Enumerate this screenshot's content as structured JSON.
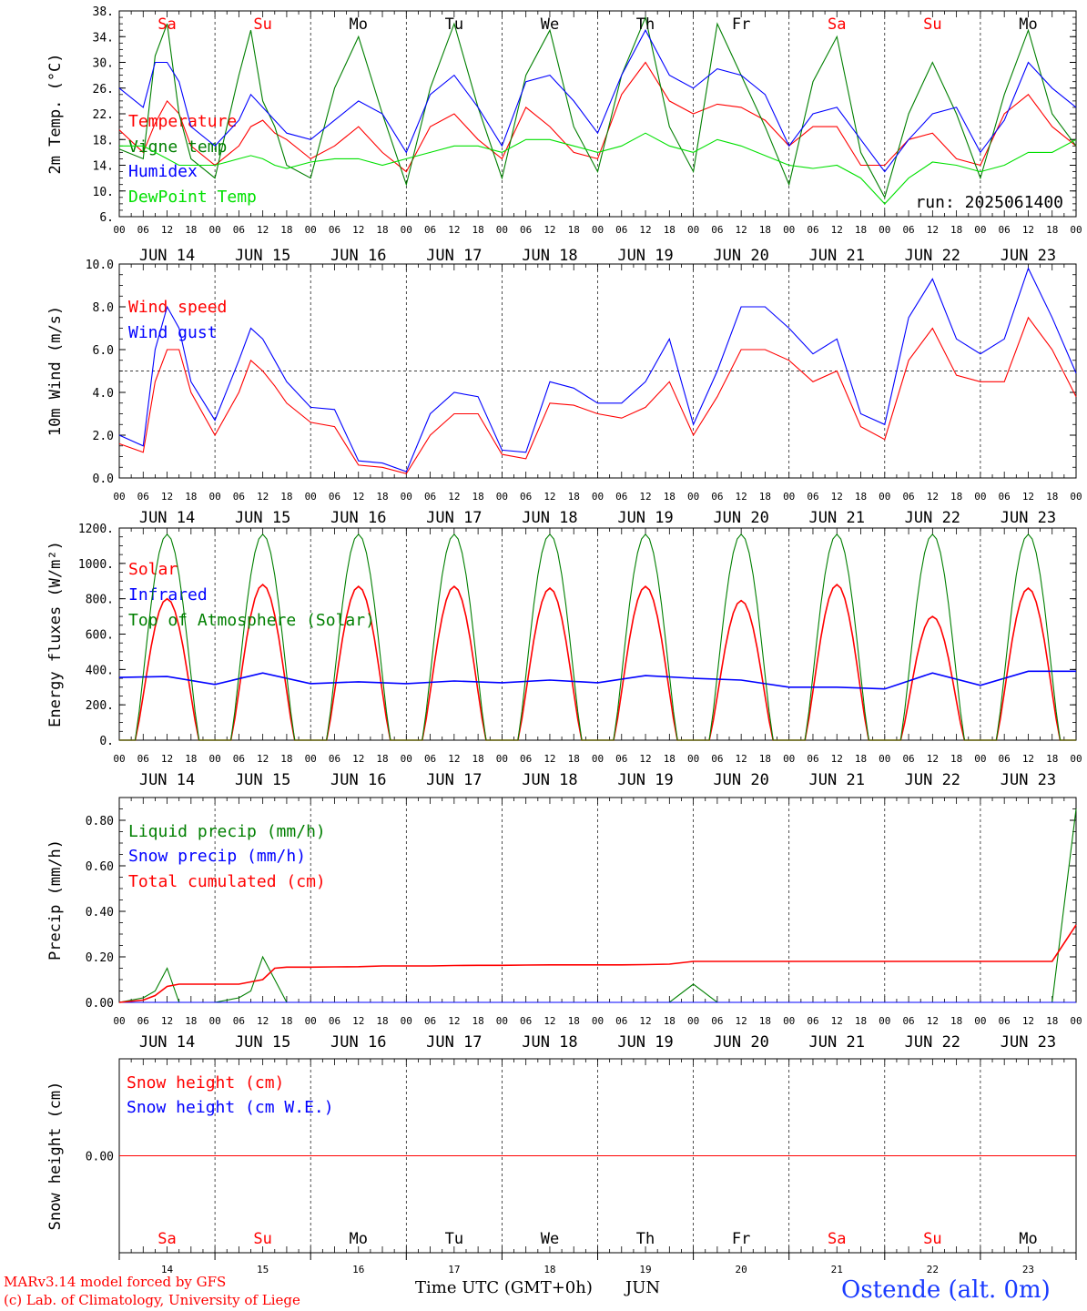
{
  "chart_data": [
    {
      "type": "line",
      "ylabel": "2m Temp. (°C)",
      "ylim": [
        6,
        38
      ],
      "yticks": [
        "6.",
        "10.",
        "14.",
        "18.",
        "22.",
        "26.",
        "30.",
        "34.",
        "38."
      ],
      "annotation": "run: 2025061400",
      "x_hours": [
        0,
        6,
        9,
        12,
        15,
        18,
        24,
        30,
        33,
        36,
        39,
        42,
        48,
        54,
        60,
        66,
        72,
        78,
        84,
        90,
        96,
        102,
        108,
        114,
        120,
        126,
        132,
        138,
        144,
        150,
        156,
        162,
        168,
        174,
        180,
        186,
        192,
        198,
        204,
        210,
        216,
        222,
        228,
        234,
        240
      ],
      "series": [
        {
          "name": "Temperature",
          "color": "#ff0000",
          "values": [
            19.5,
            16,
            20.5,
            24,
            22,
            17,
            14,
            17,
            20,
            21,
            19,
            18,
            15,
            17,
            20,
            16,
            13,
            20,
            22,
            18,
            15,
            23,
            20,
            16,
            15,
            25,
            30,
            24,
            22,
            23.5,
            23,
            21,
            17,
            20,
            20,
            14,
            14,
            18,
            19,
            15,
            14,
            22,
            25,
            20,
            17
          ]
        },
        {
          "name": "Vigne temp",
          "color": "#007f00",
          "values": [
            16.5,
            15,
            31,
            36,
            22,
            15,
            12,
            28,
            35,
            24,
            20,
            14,
            12,
            26,
            34,
            22,
            11,
            26,
            36,
            23,
            12,
            28,
            35,
            20,
            13,
            28,
            37,
            20,
            13,
            36,
            28,
            20,
            11,
            27,
            34,
            16,
            9,
            22,
            30,
            22,
            12,
            25,
            35,
            22,
            17
          ]
        },
        {
          "name": "Humidex",
          "color": "#0000ff",
          "values": [
            26,
            23,
            30,
            30,
            27,
            20,
            17,
            21,
            25,
            23,
            21,
            19,
            18,
            21,
            24,
            22,
            16,
            25,
            28,
            23,
            17,
            27,
            28,
            24,
            19,
            28,
            35,
            28,
            26,
            29,
            28,
            25,
            17,
            22,
            23,
            18,
            13,
            18,
            22,
            23,
            16,
            21,
            30,
            26,
            23
          ]
        },
        {
          "name": "DewPoint Temp",
          "color": "#00e000",
          "values": [
            17,
            17,
            16,
            15,
            14,
            14,
            14,
            15,
            15.5,
            15,
            14,
            13.5,
            14.5,
            15,
            15,
            14,
            15,
            16,
            17,
            17,
            16,
            18,
            18,
            17,
            16,
            17,
            19,
            17,
            16,
            18,
            17,
            15.5,
            14,
            13.5,
            14,
            12,
            8,
            12,
            14.5,
            14,
            13,
            14,
            16,
            16,
            18
          ]
        }
      ]
    },
    {
      "type": "line",
      "ylabel": "10m Wind (m/s)",
      "ylim": [
        0,
        10
      ],
      "yticks": [
        "0.0",
        "2.0",
        "4.0",
        "6.0",
        "8.0",
        "10.0"
      ],
      "reference_line": 5,
      "x_hours": [
        0,
        6,
        9,
        12,
        15,
        18,
        24,
        30,
        33,
        36,
        39,
        42,
        48,
        54,
        60,
        66,
        72,
        78,
        84,
        90,
        96,
        102,
        108,
        114,
        120,
        126,
        132,
        138,
        144,
        150,
        156,
        162,
        168,
        174,
        180,
        186,
        192,
        198,
        204,
        210,
        216,
        222,
        228,
        234,
        240
      ],
      "series": [
        {
          "name": "Wind speed",
          "color": "#ff0000",
          "values": [
            1.6,
            1.2,
            4.5,
            6,
            6,
            4,
            2,
            4,
            5.5,
            5,
            4.3,
            3.5,
            2.6,
            2.4,
            0.6,
            0.5,
            0.2,
            2,
            3,
            3,
            1.1,
            0.9,
            3.5,
            3.4,
            3,
            2.8,
            3.3,
            4.5,
            2,
            3.8,
            6,
            6,
            5.5,
            4.5,
            5,
            2.4,
            1.8,
            5.5,
            7,
            4.8,
            4.5,
            4.5,
            7.5,
            6,
            3.8
          ]
        },
        {
          "name": "Wind gust",
          "color": "#0000ff",
          "values": [
            2,
            1.5,
            6,
            8,
            7,
            4.5,
            2.7,
            5.5,
            7,
            6.5,
            5.5,
            4.5,
            3.3,
            3.2,
            0.8,
            0.7,
            0.3,
            3,
            4,
            3.8,
            1.3,
            1.2,
            4.5,
            4.2,
            3.5,
            3.5,
            4.5,
            6.5,
            2.5,
            5,
            8,
            8,
            7,
            5.8,
            6.5,
            3,
            2.5,
            7.5,
            9.3,
            6.5,
            5.8,
            6.5,
            9.8,
            7.5,
            4.9
          ]
        }
      ]
    },
    {
      "type": "line",
      "ylabel": "Energy fluxes (W/m²)",
      "ylim": [
        0,
        1200
      ],
      "yticks": [
        "0.",
        "200.",
        "400.",
        "600.",
        "800.",
        "1000.",
        "1200."
      ],
      "diurnal_peak_hour": 12,
      "day_labels": [
        "JUN 14",
        "JUN 15",
        "JUN 16",
        "JUN 17",
        "JUN 18",
        "JUN 19",
        "JUN 20",
        "JUN 21",
        "JUN 22",
        "JUN 23"
      ],
      "daily_peaks": {
        "Solar": [
          800,
          880,
          870,
          870,
          860,
          870,
          790,
          880,
          700,
          860
        ],
        "Top of Atmosphere (Solar)": [
          1165,
          1165,
          1165,
          1165,
          1165,
          1165,
          1165,
          1165,
          1165,
          1165
        ]
      },
      "series": [
        {
          "name": "Solar",
          "color": "#ff0000"
        },
        {
          "name": "Infrared",
          "color": "#0000ff",
          "x_hours": [
            0,
            12,
            24,
            36,
            48,
            60,
            72,
            84,
            96,
            108,
            120,
            132,
            144,
            156,
            168,
            180,
            192,
            204,
            216,
            228,
            240
          ],
          "values": [
            355,
            360,
            315,
            380,
            320,
            330,
            320,
            335,
            325,
            340,
            325,
            365,
            350,
            340,
            300,
            300,
            290,
            380,
            310,
            390,
            390
          ]
        },
        {
          "name": "Top of Atmosphere (Solar)",
          "color": "#007f00"
        }
      ]
    },
    {
      "type": "line",
      "ylabel": "Precip (mm/h)",
      "ylim": [
        0,
        0.9
      ],
      "yticks": [
        "0.00",
        "0.20",
        "0.40",
        "0.60",
        "0.80"
      ],
      "x_hours": [
        0,
        6,
        9,
        12,
        15,
        18,
        24,
        30,
        33,
        36,
        39,
        42,
        48,
        54,
        60,
        66,
        72,
        78,
        84,
        90,
        96,
        102,
        108,
        114,
        120,
        126,
        132,
        138,
        144,
        150,
        156,
        162,
        168,
        174,
        180,
        186,
        192,
        198,
        204,
        210,
        216,
        222,
        228,
        234,
        240
      ],
      "series": [
        {
          "name": "Liquid precip (mm/h)",
          "color": "#007f00",
          "values": [
            0,
            0.02,
            0.05,
            0.15,
            0,
            0,
            0,
            0.02,
            0.05,
            0.2,
            0.1,
            0,
            0,
            0,
            0,
            0,
            0,
            0,
            0,
            0,
            0,
            0,
            0,
            0,
            0,
            0,
            0,
            0,
            0.08,
            0,
            0,
            0,
            0,
            0,
            0,
            0,
            0,
            0,
            0,
            0,
            0,
            0,
            0,
            0,
            0.85
          ]
        },
        {
          "name": "Snow precip (mm/h)",
          "color": "#0000ff",
          "values": [
            0,
            0,
            0,
            0,
            0,
            0,
            0,
            0,
            0,
            0,
            0,
            0,
            0,
            0,
            0,
            0,
            0,
            0,
            0,
            0,
            0,
            0,
            0,
            0,
            0,
            0,
            0,
            0,
            0,
            0,
            0,
            0,
            0,
            0,
            0,
            0,
            0,
            0,
            0,
            0,
            0,
            0,
            0,
            0,
            0
          ]
        },
        {
          "name": "Total cumulated (cm)",
          "color": "#ff0000",
          "values": [
            0,
            0.01,
            0.03,
            0.07,
            0.08,
            0.08,
            0.08,
            0.08,
            0.09,
            0.1,
            0.15,
            0.155,
            0.155,
            0.156,
            0.157,
            0.16,
            0.16,
            0.16,
            0.162,
            0.163,
            0.163,
            0.164,
            0.165,
            0.165,
            0.165,
            0.165,
            0.166,
            0.168,
            0.18,
            0.18,
            0.18,
            0.18,
            0.18,
            0.18,
            0.18,
            0.18,
            0.18,
            0.18,
            0.18,
            0.18,
            0.18,
            0.18,
            0.18,
            0.18,
            0.34
          ]
        }
      ]
    },
    {
      "type": "line",
      "ylabel": "Snow height (cm)",
      "ylim": [
        -1,
        1
      ],
      "yticks": [
        "0.00"
      ],
      "x_hours": [
        0,
        240
      ],
      "series": [
        {
          "name": "Snow height (cm)",
          "color": "#ff0000",
          "values": [
            0,
            0
          ]
        },
        {
          "name": "Snow height (cm W.E.)",
          "color": "#0000ff"
        }
      ]
    }
  ],
  "x_axis": {
    "hour_ticks": [
      "00",
      "06",
      "12",
      "18"
    ],
    "end_tick": "00",
    "dates": [
      "JUN 14",
      "JUN 15",
      "JUN 16",
      "JUN 17",
      "JUN 18",
      "JUN 19",
      "JUN 20",
      "JUN 21",
      "JUN 22",
      "JUN 23"
    ],
    "weekdays": [
      "Sa",
      "Su",
      "Mo",
      "Tu",
      "We",
      "Th",
      "Fr",
      "Sa",
      "Su",
      "Mo"
    ],
    "weekend_color": "#ff0000",
    "weekday_color": "#000000",
    "day_numbers": [
      "14",
      "15",
      "16",
      "17",
      "18",
      "19",
      "20",
      "21",
      "22",
      "23"
    ],
    "xlabel": "Time UTC (GMT+0h)",
    "month": "JUN"
  },
  "footer": {
    "model": "MARv3.14 model forced by GFS",
    "credit": "(c) Lab. of Climatology, University of Liege",
    "station": "Ostende (alt. 0m)"
  }
}
